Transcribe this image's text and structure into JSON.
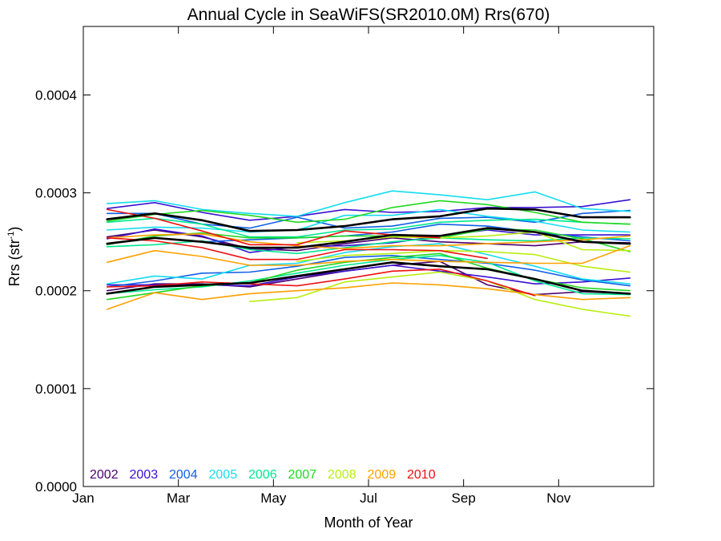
{
  "chart_data": {
    "type": "line",
    "title": "Annual Cycle in SeaWiFS(SR2010.0M) Rrs(670)",
    "xlabel": "Month of Year",
    "ylabel_main": "Rrs (str",
    "ylabel_sup": "-1",
    "ylabel_close": ")",
    "xlim": [
      1,
      13
    ],
    "ylim": [
      0,
      0.00047
    ],
    "xticks": [
      {
        "value": 1,
        "label": "Jan"
      },
      {
        "value": 3,
        "label": "Mar"
      },
      {
        "value": 5,
        "label": "May"
      },
      {
        "value": 7,
        "label": "Jul"
      },
      {
        "value": 9,
        "label": "Sep"
      },
      {
        "value": 11,
        "label": "Nov"
      }
    ],
    "yticks": [
      {
        "value": 0.0,
        "label": "0.0000"
      },
      {
        "value": 0.0001,
        "label": "0.0001"
      },
      {
        "value": 0.0002,
        "label": "0.0002"
      },
      {
        "value": 0.0003,
        "label": "0.0003"
      },
      {
        "value": 0.0004,
        "label": "0.0004"
      }
    ],
    "legend": [
      {
        "label": "2002",
        "color": "#4b0070"
      },
      {
        "label": "2003",
        "color": "#3a10d0"
      },
      {
        "label": "2004",
        "color": "#1060e8"
      },
      {
        "label": "2005",
        "color": "#14dcf0"
      },
      {
        "label": "2006",
        "color": "#00e890"
      },
      {
        "label": "2007",
        "color": "#20d820"
      },
      {
        "label": "2008",
        "color": "#b8ee10"
      },
      {
        "label": "2009",
        "color": "#ffa000"
      },
      {
        "label": "2010",
        "color": "#ee1010"
      }
    ],
    "x": [
      1.5,
      2.5,
      3.5,
      4.5,
      5.5,
      6.5,
      7.5,
      8.5,
      9.5,
      10.5,
      11.5,
      12.5
    ],
    "series": [
      {
        "color": "#000000",
        "width": 2.6,
        "values": [
          0.000273,
          0.000279,
          0.000272,
          0.000261,
          0.000262,
          0.000266,
          0.000273,
          0.000276,
          0.000284,
          0.000283,
          0.000275,
          0.000275
        ]
      },
      {
        "color": "#000000",
        "width": 2.6,
        "values": [
          0.000248,
          0.000254,
          0.00025,
          0.000244,
          0.000244,
          0.00025,
          0.000257,
          0.000256,
          0.000264,
          0.00026,
          0.00025,
          0.000248
        ]
      },
      {
        "color": "#000000",
        "width": 2.6,
        "values": [
          0.000197,
          0.000204,
          0.000206,
          0.000208,
          0.000215,
          0.000222,
          0.000229,
          0.000225,
          0.000222,
          0.000212,
          0.0002,
          0.000197
        ]
      },
      {
        "color": "#4b0070",
        "width": 1.6,
        "values": [
          0.000255,
          0.000262,
          0.000255,
          0.000243,
          0.000241,
          0.000248,
          0.000254,
          0.00025,
          0.000248,
          0.000246,
          0.00025,
          0.000249
        ]
      },
      {
        "color": "#4b0070",
        "width": 1.6,
        "values": [
          0.0002,
          0.000207,
          0.000207,
          0.000204,
          0.000212,
          0.00022,
          0.000226,
          0.00023,
          0.000206,
          0.000196,
          0.000199,
          0.000197
        ]
      },
      {
        "color": "#3a10d0",
        "width": 1.6,
        "values": [
          0.000284,
          0.00029,
          0.00028,
          0.000272,
          0.000276,
          0.000283,
          0.00028,
          0.000281,
          0.000285,
          0.000285,
          0.000286,
          0.000293
        ]
      },
      {
        "color": "#3a10d0",
        "width": 1.6,
        "values": [
          0.000253,
          0.000263,
          0.000256,
          0.000239,
          0.000245,
          0.000246,
          0.000249,
          0.000256,
          0.000262,
          0.000257,
          0.000257,
          0.000257
        ]
      },
      {
        "color": "#3a10d0",
        "width": 1.6,
        "values": [
          0.000206,
          0.000206,
          0.000206,
          0.000205,
          0.000214,
          0.00022,
          0.000226,
          0.00022,
          0.000214,
          0.000207,
          0.000209,
          0.000213
        ]
      },
      {
        "color": "#1060e8",
        "width": 1.6,
        "values": [
          0.000279,
          0.000279,
          0.000268,
          0.000264,
          0.000275,
          0.000264,
          0.000266,
          0.000274,
          0.000275,
          0.00027,
          0.000279,
          0.000282
        ]
      },
      {
        "color": "#1060e8",
        "width": 1.6,
        "values": [
          0.000248,
          0.000254,
          0.00025,
          0.000252,
          0.000254,
          0.000256,
          0.00026,
          0.000268,
          0.000266,
          0.00026,
          0.000255,
          0.000251
        ]
      },
      {
        "color": "#1060e8",
        "width": 1.6,
        "values": [
          0.000204,
          0.00021,
          0.000218,
          0.000219,
          0.000225,
          0.000234,
          0.000236,
          0.000232,
          0.000228,
          0.000221,
          0.000211,
          0.000205
        ]
      },
      {
        "color": "#14dcf0",
        "width": 1.6,
        "values": [
          0.000289,
          0.000292,
          0.000283,
          0.000279,
          0.000276,
          0.00029,
          0.000302,
          0.000298,
          0.000293,
          0.000301,
          0.000284,
          0.000281
        ]
      },
      {
        "color": "#14dcf0",
        "width": 1.6,
        "values": [
          0.000262,
          0.000265,
          0.000264,
          0.00026,
          0.000262,
          0.000277,
          0.000277,
          0.000283,
          0.000276,
          0.000271,
          0.000262,
          0.00026
        ]
      },
      {
        "color": "#14dcf0",
        "width": 1.6,
        "values": [
          0.000207,
          0.000215,
          0.000212,
          0.000226,
          0.000228,
          0.000239,
          0.000245,
          0.000248,
          0.000237,
          0.000225,
          0.000212,
          0.000207
        ]
      },
      {
        "color": "#00e890",
        "width": 1.6,
        "values": [
          0.00027,
          0.000274,
          0.000268,
          0.000255,
          0.000255,
          0.000262,
          0.000263,
          0.00027,
          0.000272,
          0.000273,
          0.00027,
          0.000268
        ]
      },
      {
        "color": "#00e890",
        "width": 1.6,
        "values": [
          0.000245,
          0.000247,
          0.000251,
          0.000242,
          0.000238,
          0.000244,
          0.00025,
          0.000254,
          0.000252,
          0.000251,
          0.000254,
          0.000253
        ]
      },
      {
        "color": "#00e890",
        "width": 1.6,
        "values": [
          0.000197,
          0.000201,
          0.000204,
          0.00021,
          0.000218,
          0.000226,
          0.000232,
          0.000236,
          0.000229,
          0.00021,
          0.000197,
          0.000196
        ]
      },
      {
        "color": "#20d820",
        "width": 1.6,
        "values": [
          0.000271,
          0.000278,
          0.000282,
          0.000277,
          0.00027,
          0.000273,
          0.000285,
          0.000292,
          0.000288,
          0.00028,
          0.00027,
          0.000268
        ]
      },
      {
        "color": "#20d820",
        "width": 1.6,
        "values": [
          0.000247,
          0.000256,
          0.000259,
          0.000254,
          0.000254,
          0.000256,
          0.000256,
          0.000254,
          0.000263,
          0.000262,
          0.000253,
          0.00024
        ]
      },
      {
        "color": "#20d820",
        "width": 1.6,
        "values": [
          0.000191,
          0.000198,
          0.000205,
          0.000208,
          0.000221,
          0.000229,
          0.000234,
          0.000238,
          0.000223,
          0.000212,
          0.000203,
          0.0002
        ]
      },
      {
        "color": "#b8ee10",
        "width": 1.6,
        "values": [
          null,
          null,
          null,
          0.000189,
          0.000193,
          0.000209,
          0.000214,
          0.000219,
          0.00021,
          0.000191,
          0.000181,
          0.000174
        ]
      },
      {
        "color": "#b8ee10",
        "width": 1.6,
        "values": [
          null,
          null,
          null,
          null,
          0.00023,
          0.000236,
          0.000238,
          0.000241,
          0.00024,
          0.000237,
          0.000225,
          0.000219
        ]
      },
      {
        "color": "#b8ee10",
        "width": 1.6,
        "values": [
          null,
          null,
          null,
          null,
          0.000249,
          0.000251,
          0.000255,
          0.000254,
          0.000256,
          0.00026,
          0.000242,
          0.000241
        ]
      },
      {
        "color": "#ffa000",
        "width": 1.6,
        "values": [
          0.000181,
          0.000198,
          0.000191,
          0.000197,
          0.0002,
          0.000203,
          0.000208,
          0.000206,
          0.000202,
          0.000196,
          0.000191,
          0.000193
        ]
      },
      {
        "color": "#ffa000",
        "width": 1.6,
        "values": [
          0.000229,
          0.000241,
          0.000235,
          0.000226,
          0.000226,
          0.00023,
          0.000232,
          0.00023,
          0.000229,
          0.000228,
          0.000228,
          0.000246
        ]
      },
      {
        "color": "#ffa000",
        "width": 1.6,
        "values": [
          0.000254,
          0.000257,
          0.000258,
          0.00025,
          0.000246,
          0.000243,
          0.000246,
          0.000246,
          0.000248,
          0.00025,
          0.000252,
          0.000256
        ]
      },
      {
        "color": "#ee1010",
        "width": 1.6,
        "values": [
          0.000283,
          0.000274,
          0.000261,
          0.000247,
          0.000247,
          0.000261,
          0.000257,
          0.000254,
          null,
          null,
          null,
          null
        ]
      },
      {
        "color": "#ee1010",
        "width": 1.6,
        "values": [
          0.000254,
          0.000251,
          0.000244,
          0.000232,
          0.000232,
          0.000242,
          0.000242,
          0.000241,
          0.000233,
          null,
          null,
          null
        ]
      },
      {
        "color": "#ee1010",
        "width": 1.6,
        "values": [
          0.000204,
          0.000205,
          0.000209,
          0.000207,
          0.000205,
          0.000212,
          0.00022,
          0.000222,
          0.00021,
          0.000195,
          null,
          null
        ]
      }
    ]
  }
}
